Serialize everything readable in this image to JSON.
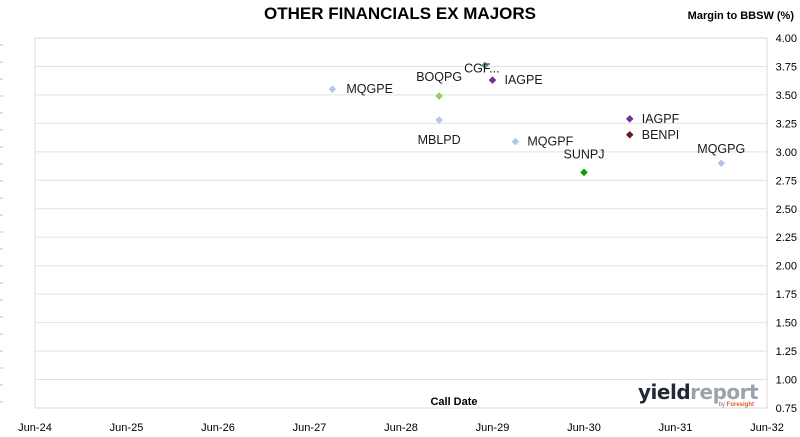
{
  "chart_data": {
    "type": "scatter",
    "title": "OTHER FINANCIALS EX MAJORS",
    "xlabel": "Call Date",
    "ylabel": "Margin to BBSW (%)",
    "xlim": [
      "Jun-24",
      "Jun-32"
    ],
    "ylim": [
      0.75,
      4.0
    ],
    "x_ticks": [
      "Jun-24",
      "Jun-25",
      "Jun-26",
      "Jun-27",
      "Jun-28",
      "Jun-29",
      "Jun-30",
      "Jun-31",
      "Jun-32"
    ],
    "y_ticks": [
      "0.75",
      "1.00",
      "1.25",
      "1.50",
      "1.75",
      "2.00",
      "2.25",
      "2.50",
      "2.75",
      "3.00",
      "3.25",
      "3.50",
      "3.75",
      "4.00"
    ],
    "grid": "horizontal",
    "points": [
      {
        "label": "MQGPE",
        "x": "Sep-27",
        "y": 3.55,
        "color": "#b4c6e7"
      },
      {
        "label": "BOQPG",
        "x": "Nov-28",
        "y": 3.49,
        "color": "#92d050"
      },
      {
        "label": "CGF...",
        "x": "May-29",
        "y": 3.76,
        "color": "#6a9e8f"
      },
      {
        "label": "IAGPE",
        "x": "Jun-29",
        "y": 3.63,
        "color": "#7030a0"
      },
      {
        "label": "MBLPD",
        "x": "Nov-28",
        "y": 3.28,
        "color": "#b4c6e7"
      },
      {
        "label": "MQGPF",
        "x": "Sep-29",
        "y": 3.09,
        "color": "#b4c6e7"
      },
      {
        "label": "SUNPJ",
        "x": "Jun-30",
        "y": 2.82,
        "color": "#00a000"
      },
      {
        "label": "IAGPF",
        "x": "Dec-30",
        "y": 3.29,
        "color": "#7030a0"
      },
      {
        "label": "BENPI",
        "x": "Dec-30",
        "y": 3.15,
        "color": "#6b1a1a"
      },
      {
        "label": "MQGPG",
        "x": "Dec-31",
        "y": 2.9,
        "color": "#b4c6e7"
      }
    ]
  },
  "logo": {
    "main_a": "yield",
    "main_b": "report",
    "sub_a": "by",
    "sub_b": "Foresight"
  }
}
